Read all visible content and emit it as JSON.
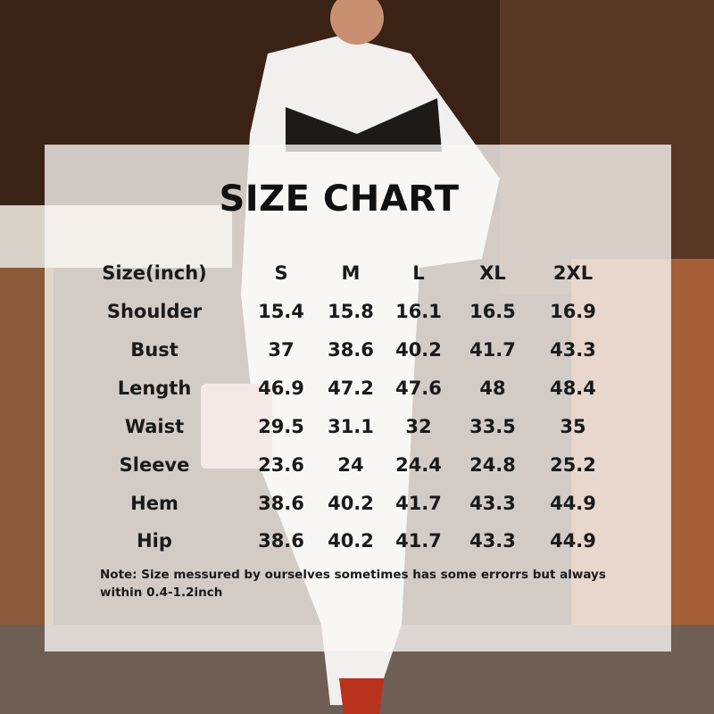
{
  "title": "SIZE CHART",
  "table": {
    "headers": [
      "Size(inch)",
      "S",
      "M",
      "L",
      "XL",
      "2XL"
    ],
    "rows": [
      {
        "label": "Shoulder",
        "values": [
          "15.4",
          "15.8",
          "16.1",
          "16.5",
          "16.9"
        ]
      },
      {
        "label": "Bust",
        "values": [
          "37",
          "38.6",
          "40.2",
          "41.7",
          "43.3"
        ]
      },
      {
        "label": "Length",
        "values": [
          "46.9",
          "47.2",
          "47.6",
          "48",
          "48.4"
        ]
      },
      {
        "label": "Waist",
        "values": [
          "29.5",
          "31.1",
          "32",
          "33.5",
          "35"
        ]
      },
      {
        "label": "Sleeve",
        "values": [
          "23.6",
          "24",
          "24.4",
          "24.8",
          "25.2"
        ]
      },
      {
        "label": "Hem",
        "values": [
          "38.6",
          "40.2",
          "41.7",
          "43.3",
          "44.9"
        ]
      },
      {
        "label": "Hip",
        "values": [
          "38.6",
          "40.2",
          "41.7",
          "43.3",
          "44.9"
        ]
      }
    ]
  },
  "note": "Note:  Size messured by ourselves sometimes has some errorrs but always within 0.4-1.2inch",
  "colors": {
    "panel": "#faf8f6",
    "text": "#111111",
    "sofa": "#9a5a36",
    "shoe": "#b8321e"
  }
}
